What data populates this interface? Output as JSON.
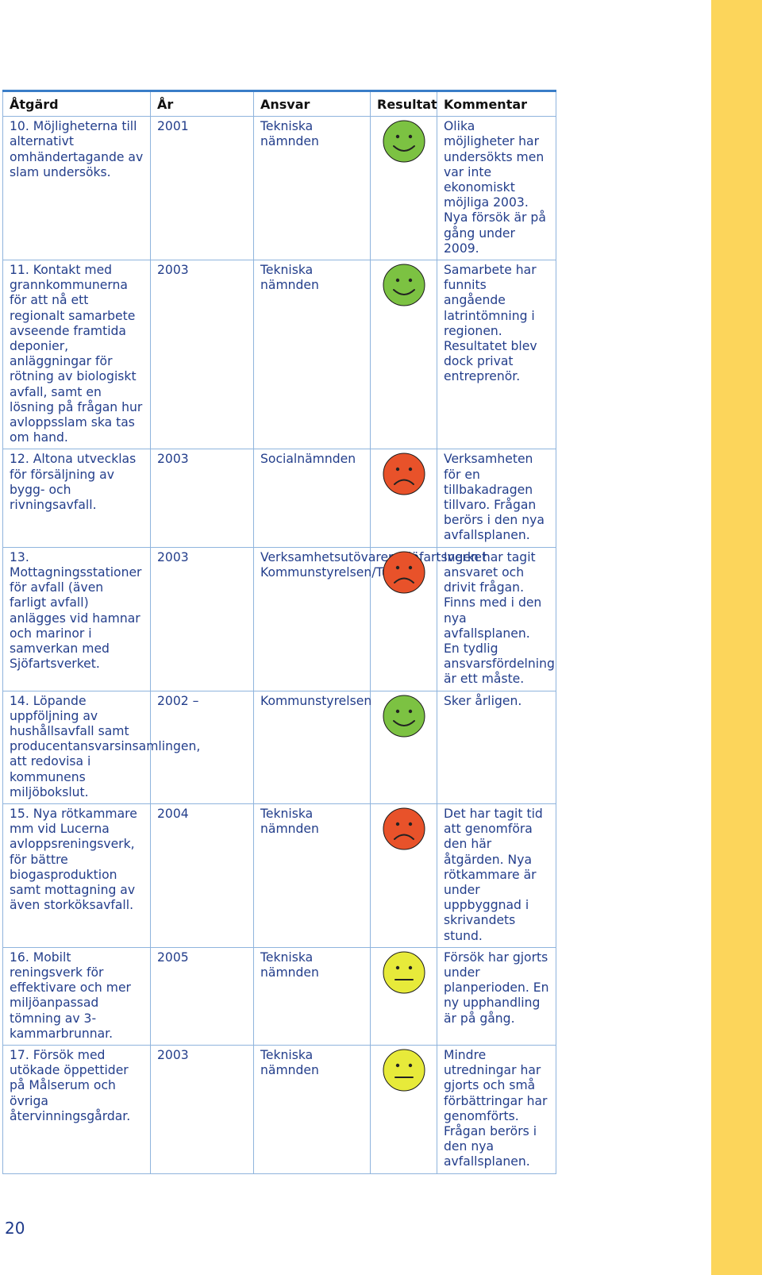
{
  "page_number": "20",
  "colors": {
    "side_band": "#fcd55b",
    "text": "#233e8b",
    "rule": "#3a7dc8",
    "good": "#7cc242",
    "bad": "#e8522a",
    "neutral": "#e7ea3a"
  },
  "table": {
    "headers": {
      "atgard": "Åtgärd",
      "ar": "År",
      "ansvar": "Ansvar",
      "resultat": "Resultat",
      "kommentar": "Kommentar"
    },
    "rows": [
      {
        "atgard": "10. Möjligheterna till alternativt omhändertagande av slam undersöks.",
        "ar": "2001",
        "ansvar": "Tekniska nämnden",
        "resultat": "happy",
        "kommentar": "Olika möjligheter har undersökts men var inte ekonomiskt möjliga 2003. Nya försök är på gång under 2009."
      },
      {
        "atgard": "11. Kontakt med grannkommunerna för att nå ett regionalt samarbete avseende framtida deponier, anläggningar för rötning av biologiskt avfall, samt en lösning på frågan hur avloppsslam ska tas om hand.",
        "ar": "2003",
        "ansvar": "Tekniska nämnden",
        "resultat": "happy",
        "kommentar": "Samarbete har funnits angående latrintömning i regionen. Resultatet blev dock privat entreprenör."
      },
      {
        "atgard": "12. Altona utvecklas för försäljning av bygg- och rivningsavfall.",
        "ar": "2003",
        "ansvar": "Socialnämnden",
        "resultat": "sad",
        "kommentar": "Verksamheten för en tillbakadragen tillvaro. Frågan berörs i den nya avfallsplanen."
      },
      {
        "atgard": "13. Mottagningsstationer för avfall (även farligt avfall) anlägges vid hamnar och marinor i samverkan med Sjöfartsverket.",
        "ar": "2003",
        "ansvar": "Verksamhetsutövaren/Sjöfartsverket Kommunstyrelsen/Turism",
        "resultat": "sad",
        "kommentar": "Ingen har tagit ansvaret och drivit frågan. Finns med i den nya avfallsplanen. En tydlig ansvarsfördelning är ett måste."
      },
      {
        "atgard": "14. Löpande uppföljning av hushållsavfall samt producentansvarsinsamlingen, att redovisa i kommunens miljöbokslut.",
        "ar": "2002 –",
        "ansvar": "Kommunstyrelsen",
        "resultat": "happy",
        "kommentar": "Sker årligen."
      },
      {
        "atgard": "15. Nya rötkammare mm vid Lucerna avloppsreningsverk, för bättre biogasproduktion samt mottagning av även storköksavfall.",
        "ar": "2004",
        "ansvar": "Tekniska nämnden",
        "resultat": "sad",
        "kommentar": "Det har tagit tid att genomföra den här åtgärden. Nya rötkammare är under uppbyggnad i skrivandets stund."
      },
      {
        "atgard": "16. Mobilt reningsverk för effektivare och mer miljöanpassad tömning av 3-kammarbrunnar.",
        "ar": "2005",
        "ansvar": "Tekniska nämnden",
        "resultat": "neutral",
        "kommentar": "Försök har gjorts under planperioden. En ny upphandling är på gång."
      },
      {
        "atgard": "17. Försök med utökade öppettider på Målserum och övriga återvinningsgårdar.",
        "ar": "2003",
        "ansvar": "Tekniska nämnden",
        "resultat": "neutral",
        "kommentar": "Mindre utredningar har gjorts och små förbättringar har genomförts. Frågan berörs i den nya avfallsplanen."
      }
    ]
  }
}
